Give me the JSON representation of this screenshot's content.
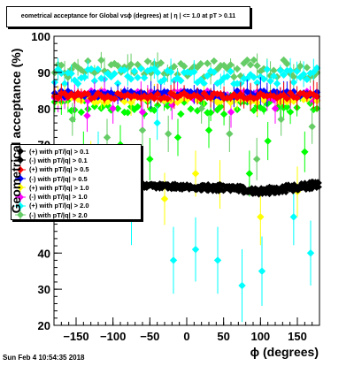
{
  "timestamp": "Sun Feb  4 10:54:35 2018",
  "chart_data": {
    "type": "scatter",
    "title": "eometrical acceptance for Global vsϕ (degrees) at | η | <= 1.0 at pT > 0.11",
    "xlabel": "ϕ (degrees)",
    "ylabel": "Geometrical acceptance (%)",
    "xlim": [
      -180,
      180
    ],
    "ylim": [
      20,
      100
    ],
    "xticks": [
      -150,
      -100,
      -50,
      0,
      50,
      100,
      150
    ],
    "xtick_labels": [
      "−150",
      "−100",
      "−50",
      "0",
      "50",
      "100",
      "150"
    ],
    "yticks": [
      20,
      30,
      40,
      50,
      60,
      70,
      80,
      90,
      100
    ],
    "ytick_labels": [
      "20",
      "30",
      "40",
      "50",
      "60",
      "70",
      "80",
      "90",
      "100"
    ],
    "grid": false,
    "legend_position": "middle-left",
    "series": [
      {
        "name": "(+) with pT/|q| > 0.1",
        "marker": "diamond",
        "color": "#000000",
        "levels": [
          [
            -180,
            58
          ],
          [
            -60,
            58.5
          ],
          [
            0,
            58
          ],
          [
            60,
            57.5
          ],
          [
            100,
            56.5
          ],
          [
            180,
            58.5
          ]
        ],
        "scatter": 0.6,
        "outliers": []
      },
      {
        "name": "(-) with pT/|q| > 0.1",
        "marker": "diamond",
        "color": "#000000",
        "levels": [
          [
            -180,
            59.5
          ],
          [
            -60,
            59
          ],
          [
            0,
            58.5
          ],
          [
            60,
            58.5
          ],
          [
            100,
            57.5
          ],
          [
            180,
            59.5
          ]
        ],
        "scatter": 0.6,
        "outliers": []
      },
      {
        "name": "(+) with pT/|q| > 0.5",
        "marker": "diamond",
        "color": "#ff0000",
        "levels": [
          [
            -180,
            83.5
          ],
          [
            180,
            83.5
          ]
        ],
        "scatter": 0.8,
        "outliers": []
      },
      {
        "name": "(-) with pT/|q| > 0.5",
        "marker": "diamond",
        "color": "#0000ff",
        "levels": [
          [
            -180,
            84
          ],
          [
            180,
            84
          ]
        ],
        "scatter": 0.9,
        "outliers": []
      },
      {
        "name": "(+) with pT/|q| > 1.0",
        "marker": "diamond",
        "color": "#ffff00",
        "levels": [
          [
            -180,
            83
          ],
          [
            180,
            83
          ]
        ],
        "scatter": 1.4,
        "outliers": [
          [
            -130,
            65
          ],
          [
            -95,
            62
          ],
          [
            -30,
            55
          ],
          [
            12,
            62
          ],
          [
            45,
            59
          ],
          [
            100,
            50
          ],
          [
            150,
            57
          ]
        ]
      },
      {
        "name": "(-) with pT/|q| > 1.0",
        "marker": "diamond",
        "color": "#ff00ff",
        "levels": [
          [
            -180,
            83.5
          ],
          [
            180,
            83.5
          ]
        ],
        "scatter": 1.4,
        "outliers": [
          [
            -135,
            78
          ],
          [
            -100,
            80
          ],
          [
            -60,
            79
          ],
          [
            -20,
            81
          ],
          [
            60,
            79
          ],
          [
            120,
            80
          ]
        ]
      },
      {
        "name": "(+) with pT/|q| > 2.0",
        "marker": "diamond",
        "color": "#00ffff",
        "levels": [
          [
            -180,
            89
          ],
          [
            180,
            89
          ]
        ],
        "scatter": 2.2,
        "outliers": [
          [
            -75,
            50
          ],
          [
            -18,
            38
          ],
          [
            12,
            41
          ],
          [
            42,
            38
          ],
          [
            75,
            31
          ],
          [
            102,
            35
          ],
          [
            145,
            50
          ],
          [
            168,
            40
          ],
          [
            -120,
            68
          ],
          [
            -40,
            76
          ]
        ]
      },
      {
        "name": "(-) with pT/|q| > 2.0",
        "marker": "diamond",
        "color": "#66cc66",
        "levels": [
          [
            -180,
            91
          ],
          [
            180,
            91
          ]
        ],
        "scatter": 2.5,
        "outliers": [
          [
            -155,
            77
          ],
          [
            -108,
            72
          ],
          [
            -60,
            74
          ],
          [
            -25,
            73
          ],
          [
            20,
            80
          ],
          [
            58,
            73
          ],
          [
            95,
            66
          ],
          [
            128,
            77
          ],
          [
            170,
            75
          ]
        ]
      },
      {
        "name": "",
        "marker": "diamond",
        "color": "#00ff00",
        "levels": [
          [
            -180,
            81
          ],
          [
            180,
            81
          ]
        ],
        "scatter": 2.6,
        "outliers": [
          [
            -140,
            68
          ],
          [
            -90,
            70
          ],
          [
            -50,
            66
          ],
          [
            -12,
            72
          ],
          [
            30,
            74
          ],
          [
            85,
            62
          ],
          [
            110,
            71
          ],
          [
            160,
            68
          ]
        ]
      }
    ]
  }
}
